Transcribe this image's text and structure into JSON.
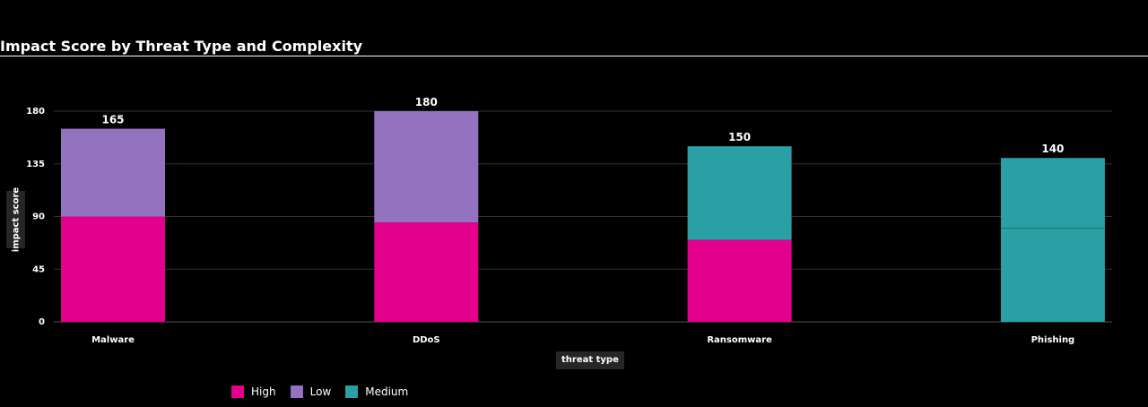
{
  "chart_data": {
    "type": "bar",
    "stacked": true,
    "title": "Impact Score by Threat Type and Complexity",
    "xlabel": "threat type",
    "ylabel": "impact score",
    "categories": [
      "Malware",
      "DDoS",
      "Ransomware",
      "Phishing"
    ],
    "ylim": [
      0,
      180
    ],
    "yticks": [
      0,
      45,
      90,
      135,
      180
    ],
    "series": [
      {
        "name": "High",
        "color": "#e3008c",
        "values": [
          90,
          85,
          70,
          0
        ]
      },
      {
        "name": "Low",
        "color": "#9373c0",
        "values": [
          75,
          95,
          0,
          0
        ]
      },
      {
        "name": "Medium",
        "color": "#2aa0a4",
        "values": [
          0,
          0,
          80,
          140
        ]
      }
    ],
    "totals": [
      165,
      180,
      150,
      140
    ],
    "grid": true,
    "legend": "bottom-left"
  }
}
